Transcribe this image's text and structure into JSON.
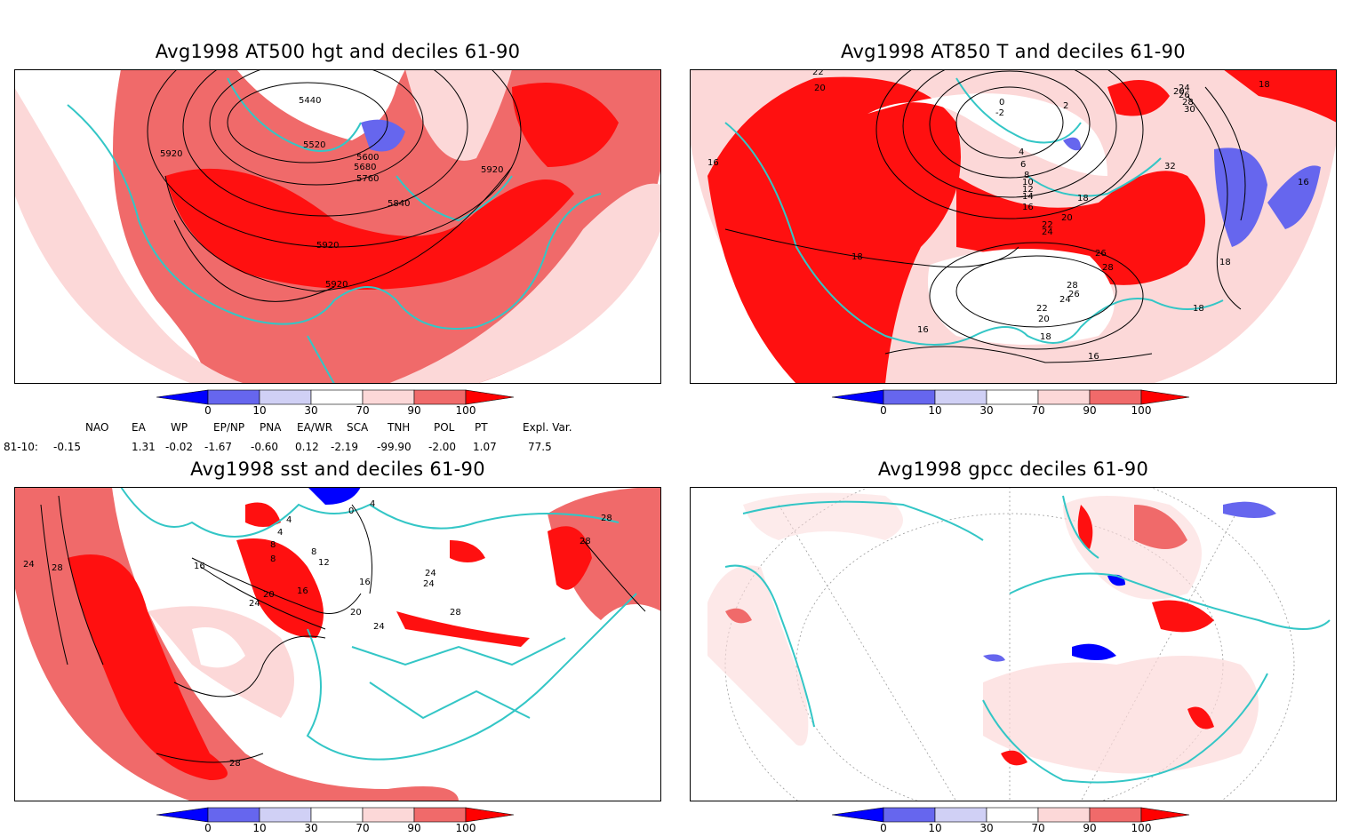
{
  "colors": {
    "dark_blue": "#0000ff",
    "mid_blue": "#6666ee",
    "light_blue": "#d0d0f5",
    "white": "#ffffff",
    "light_red": "#fcd8d8",
    "mid_red": "#f06a6a",
    "dark_red": "#ff0000",
    "coast": "#33c6c6",
    "contour": "#000000"
  },
  "colorbar": {
    "ticks": [
      "0",
      "10",
      "30",
      "70",
      "90",
      "100"
    ]
  },
  "panels": [
    {
      "title": "Avg1998 AT500 hgt and deciles 61-90",
      "contour_labels": [
        "5440",
        "5520",
        "5600",
        "5680",
        "5760",
        "5840",
        "5920",
        "5920",
        "5920",
        "5920"
      ]
    },
    {
      "title": "Avg1998 AT850 T and deciles 61-90",
      "contour_labels": [
        "22",
        "20",
        "16",
        "18",
        "16",
        "0",
        "-2",
        "2",
        "4",
        "6",
        "8",
        "10",
        "12",
        "14",
        "16",
        "18",
        "20",
        "22",
        "24",
        "26",
        "28",
        "26",
        "28",
        "24",
        "22",
        "20",
        "18",
        "16",
        "32",
        "18",
        "16",
        "18",
        "18",
        "20",
        "24",
        "26",
        "28",
        "30",
        "16"
      ]
    },
    {
      "title": "Avg1998 sst and deciles 61-90",
      "contour_labels": [
        "24",
        "28",
        "16",
        "20",
        "24",
        "4",
        "8",
        "12",
        "16",
        "20",
        "24",
        "28",
        "28",
        "28",
        "28",
        "24",
        "24",
        "20",
        "16",
        "4",
        "0",
        "8",
        "4",
        "8",
        "16",
        "28"
      ]
    },
    {
      "title": "Avg1998 gpcc deciles 61-90",
      "contour_labels": []
    }
  ],
  "indices": {
    "headers": [
      "NAO",
      "EA",
      "WP",
      "EP/NP",
      "PNA",
      "EA/WR",
      "SCA",
      "TNH",
      "POL",
      "PT",
      "Expl. Var."
    ],
    "row_label": "81-10:",
    "values": [
      "-0.15",
      "1.31",
      "-0.02",
      "-1.67",
      "-0.60",
      "0.12",
      "-2.19",
      "-99.90",
      "-2.00",
      "1.07",
      "77.5"
    ]
  }
}
